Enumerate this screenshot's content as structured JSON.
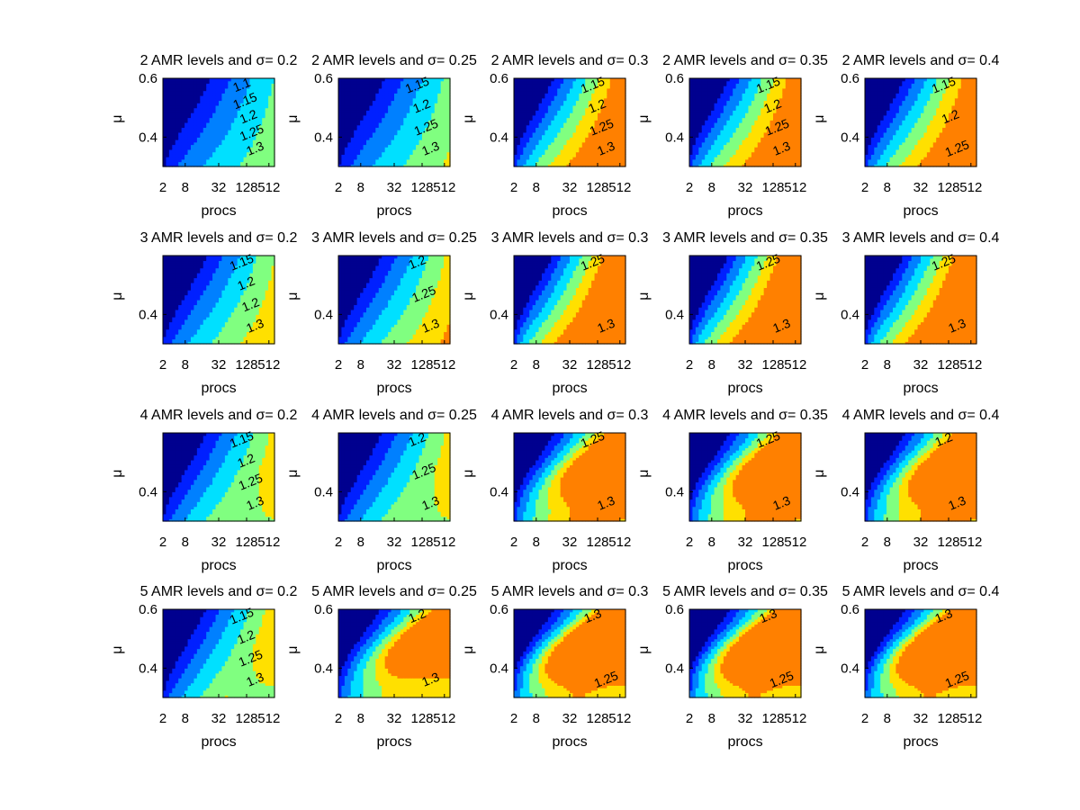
{
  "figure": {
    "background": "#ffffff"
  },
  "chart_data": {
    "type": "contour",
    "layout": {
      "rows": 4,
      "cols": 5
    },
    "colormap": [
      "#00008f",
      "#0020ff",
      "#0080ff",
      "#00e0ff",
      "#80ff80",
      "#ffe000",
      "#ff8000"
    ],
    "contour_levels": [
      1.05,
      1.1,
      1.15,
      1.2,
      1.25,
      1.3
    ],
    "xlabel": "procs",
    "ylabel": "μ",
    "xticks": [
      "2",
      "8",
      "32",
      "128",
      "512"
    ],
    "ylim": [
      0.3,
      0.6
    ],
    "grid": false,
    "panels": [
      {
        "title": "2 AMR levels and σ= 0.2",
        "yticks": [
          "0.4",
          "0.6"
        ],
        "labels": [
          "1.1",
          "1.15",
          "1.2",
          "1.25",
          "1.3"
        ],
        "shape": {
          "k": 0.65,
          "p": 0.0,
          "s": 0.0
        }
      },
      {
        "title": "2 AMR levels and σ= 0.25",
        "yticks": [
          "0.4",
          "0.6"
        ],
        "labels": [
          "1.15",
          "1.2",
          "1.25",
          "1.3"
        ],
        "shape": {
          "k": 0.7,
          "p": 0.0,
          "s": 0.0
        }
      },
      {
        "title": "2 AMR levels and σ= 0.3",
        "yticks": [
          "0.4",
          "0.6"
        ],
        "labels": [
          "1.15",
          "1.2",
          "1.25",
          "1.3"
        ],
        "shape": {
          "k": 1.15,
          "p": 0.0,
          "s": 0.0
        }
      },
      {
        "title": "2 AMR levels and σ= 0.35",
        "yticks": [
          "0.4",
          "0.6"
        ],
        "labels": [
          "1.15",
          "1.2",
          "1.25",
          "1.3"
        ],
        "shape": {
          "k": 1.15,
          "p": 0.0,
          "s": 0.0
        }
      },
      {
        "title": "2 AMR levels and σ= 0.4",
        "yticks": [
          "0.4",
          "0.6"
        ],
        "labels": [
          "1.15",
          "1.2",
          "1.25"
        ],
        "shape": {
          "k": 1.15,
          "p": 0.0,
          "s": 0.0
        }
      },
      {
        "title": "3 AMR levels and σ= 0.2",
        "yticks": [
          "0.4"
        ],
        "labels": [
          "1.15",
          "1.2",
          "1.2",
          "1.3"
        ],
        "shape": {
          "k": 0.8,
          "p": 0.0,
          "s": 0.0
        }
      },
      {
        "title": "3 AMR levels and σ= 0.25",
        "yticks": [
          "0.4"
        ],
        "labels": [
          "1.2",
          "1.25",
          "1.3"
        ],
        "shape": {
          "k": 0.85,
          "p": 0.0,
          "s": 0.0
        }
      },
      {
        "title": "3 AMR levels and σ= 0.3",
        "yticks": [
          "0.4"
        ],
        "labels": [
          "1.25",
          "1.3"
        ],
        "shape": {
          "k": 1.3,
          "p": 0.0,
          "s": 0.0
        }
      },
      {
        "title": "3 AMR levels and σ= 0.35",
        "yticks": [
          "0.4"
        ],
        "labels": [
          "1.25",
          "1.3"
        ],
        "shape": {
          "k": 1.3,
          "p": 0.0,
          "s": 0.0
        }
      },
      {
        "title": "3 AMR levels and σ= 0.4",
        "yticks": [
          "0.4"
        ],
        "labels": [
          "1.25",
          "1.3"
        ],
        "shape": {
          "k": 1.3,
          "p": 0.0,
          "s": 0.0
        }
      },
      {
        "title": "4 AMR levels and σ= 0.2",
        "yticks": [
          "0.4"
        ],
        "labels": [
          "1.15",
          "1.2",
          "1.25",
          "1.3"
        ],
        "shape": {
          "k": 0.85,
          "p": 0.0,
          "s": 0.3
        }
      },
      {
        "title": "4 AMR levels and σ= 0.25",
        "yticks": [
          "0.4"
        ],
        "labels": [
          "1.2",
          "1.25",
          "1.3"
        ],
        "shape": {
          "k": 0.85,
          "p": 0.0,
          "s": 0.3
        }
      },
      {
        "title": "4 AMR levels and σ= 0.3",
        "yticks": [
          "0.4"
        ],
        "labels": [
          "1.25",
          "1.3"
        ],
        "shape": {
          "k": 1.1,
          "p": 0.18,
          "s": 0.5
        }
      },
      {
        "title": "4 AMR levels and σ= 0.35",
        "yticks": [
          "0.4"
        ],
        "labels": [
          "1.25",
          "1.3"
        ],
        "shape": {
          "k": 1.1,
          "p": 0.2,
          "s": 0.5
        }
      },
      {
        "title": "4 AMR levels and σ= 0.4",
        "yticks": [
          "0.4"
        ],
        "labels": [
          "1.2",
          "1.3"
        ],
        "shape": {
          "k": 1.1,
          "p": 0.2,
          "s": 0.5
        }
      },
      {
        "title": "5 AMR levels and σ= 0.2",
        "yticks": [
          "0.4",
          "0.6"
        ],
        "labels": [
          "1.15",
          "1.2",
          "1.25",
          "1.3"
        ],
        "shape": {
          "k": 0.9,
          "p": 0.0,
          "s": 0.45
        }
      },
      {
        "title": "5 AMR levels and σ= 0.25",
        "yticks": [
          "0.4",
          "0.6"
        ],
        "labels": [
          "1.2",
          "1.3"
        ],
        "shape": {
          "k": 1.0,
          "p": 0.2,
          "s": 0.45
        }
      },
      {
        "title": "5 AMR levels and σ= 0.3",
        "yticks": [
          "0.4",
          "0.6"
        ],
        "labels": [
          "1.3",
          "1.25"
        ],
        "shape": {
          "k": 1.05,
          "p": 0.35,
          "s": 0.5
        }
      },
      {
        "title": "5 AMR levels and σ= 0.35",
        "yticks": [
          "0.4",
          "0.6"
        ],
        "labels": [
          "1.3",
          "1.25"
        ],
        "shape": {
          "k": 1.05,
          "p": 0.35,
          "s": 0.5
        }
      },
      {
        "title": "5 AMR levels and σ= 0.4",
        "yticks": [
          "0.4",
          "0.6"
        ],
        "labels": [
          "1.3",
          "1.25"
        ],
        "shape": {
          "k": 1.05,
          "p": 0.35,
          "s": 0.5
        }
      }
    ]
  }
}
